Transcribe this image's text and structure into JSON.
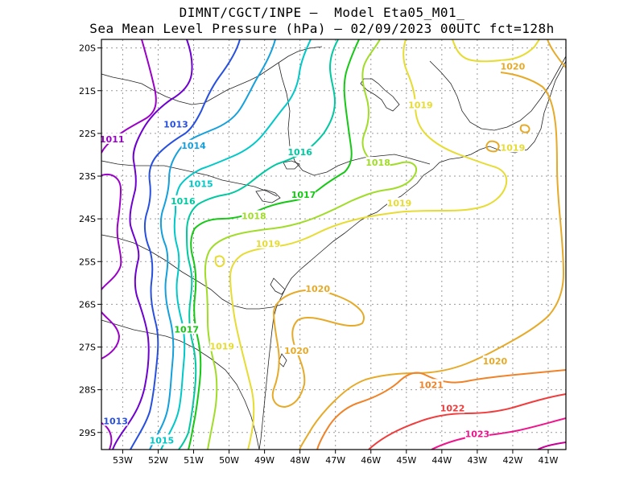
{
  "title_line1": "DIMNT/CGCT/INPE –  Model Eta05_M01_",
  "title_line2": "Sea Mean Level Pressure (hPa) – 02/09/2023 00UTC fct=128h",
  "chart_data": {
    "type": "contour",
    "xlim": [
      -53.6,
      -40.5
    ],
    "ylim": [
      -29.4,
      -19.8
    ],
    "x_ticks": [
      "53W",
      "52W",
      "51W",
      "50W",
      "49W",
      "48W",
      "47W",
      "46W",
      "45W",
      "44W",
      "43W",
      "42W",
      "41W"
    ],
    "y_ticks": [
      "20S",
      "21S",
      "22S",
      "23S",
      "24S",
      "25S",
      "26S",
      "27S",
      "28S",
      "29S"
    ],
    "grid": true,
    "levels": [
      {
        "value": 1011,
        "color": "#9b00c8",
        "labels": [
          {
            "text": "1011",
            "lon": -53.3,
            "lat": -22.15
          }
        ]
      },
      {
        "value": 1012,
        "color": "#6e00d2",
        "labels": []
      },
      {
        "value": 1013,
        "color": "#2850e0",
        "labels": [
          {
            "text": "1013",
            "lon": -51.5,
            "lat": -21.8
          },
          {
            "text": "1013",
            "lon": -53.2,
            "lat": -28.75
          }
        ]
      },
      {
        "value": 1014,
        "color": "#14a0dc",
        "labels": [
          {
            "text": "1014",
            "lon": -51.0,
            "lat": -22.3
          }
        ]
      },
      {
        "value": 1015,
        "color": "#00c8c8",
        "labels": [
          {
            "text": "1015",
            "lon": -50.8,
            "lat": -23.2
          },
          {
            "text": "1015",
            "lon": -51.9,
            "lat": -29.2
          }
        ]
      },
      {
        "value": 1016,
        "color": "#00c8a0",
        "labels": [
          {
            "text": "1016",
            "lon": -48.0,
            "lat": -22.45
          },
          {
            "text": "1016",
            "lon": -51.3,
            "lat": -23.6
          }
        ]
      },
      {
        "value": 1017,
        "color": "#14c814",
        "labels": [
          {
            "text": "1017",
            "lon": -47.9,
            "lat": -23.45
          },
          {
            "text": "1017",
            "lon": -51.2,
            "lat": -26.6
          }
        ]
      },
      {
        "value": 1018,
        "color": "#a0dc28",
        "labels": [
          {
            "text": "1018",
            "lon": -45.8,
            "lat": -22.7
          },
          {
            "text": "1018",
            "lon": -49.3,
            "lat": -23.95
          }
        ]
      },
      {
        "value": 1019,
        "color": "#e6dc32",
        "labels": [
          {
            "text": "1019",
            "lon": -44.6,
            "lat": -21.35
          },
          {
            "text": "1019",
            "lon": -42.0,
            "lat": -22.35
          },
          {
            "text": "1019",
            "lon": -45.2,
            "lat": -23.65
          },
          {
            "text": "1019",
            "lon": -48.9,
            "lat": -24.6
          },
          {
            "text": "1019",
            "lon": -50.2,
            "lat": -27.0
          }
        ]
      },
      {
        "value": 1020,
        "color": "#e6aa28",
        "labels": [
          {
            "text": "1020",
            "lon": -42.0,
            "lat": -20.45
          },
          {
            "text": "1020",
            "lon": -47.5,
            "lat": -25.65
          },
          {
            "text": "1020",
            "lon": -48.1,
            "lat": -27.1
          },
          {
            "text": "1020",
            "lon": -42.5,
            "lat": -27.35
          }
        ]
      },
      {
        "value": 1021,
        "color": "#f08228",
        "labels": [
          {
            "text": "1021",
            "lon": -44.3,
            "lat": -27.9
          }
        ]
      },
      {
        "value": 1022,
        "color": "#f03c3c",
        "labels": [
          {
            "text": "1022",
            "lon": -43.7,
            "lat": -28.45
          }
        ]
      },
      {
        "value": 1023,
        "color": "#f0148c",
        "labels": [
          {
            "text": "1023",
            "lon": -43.0,
            "lat": -29.05
          }
        ]
      }
    ]
  }
}
